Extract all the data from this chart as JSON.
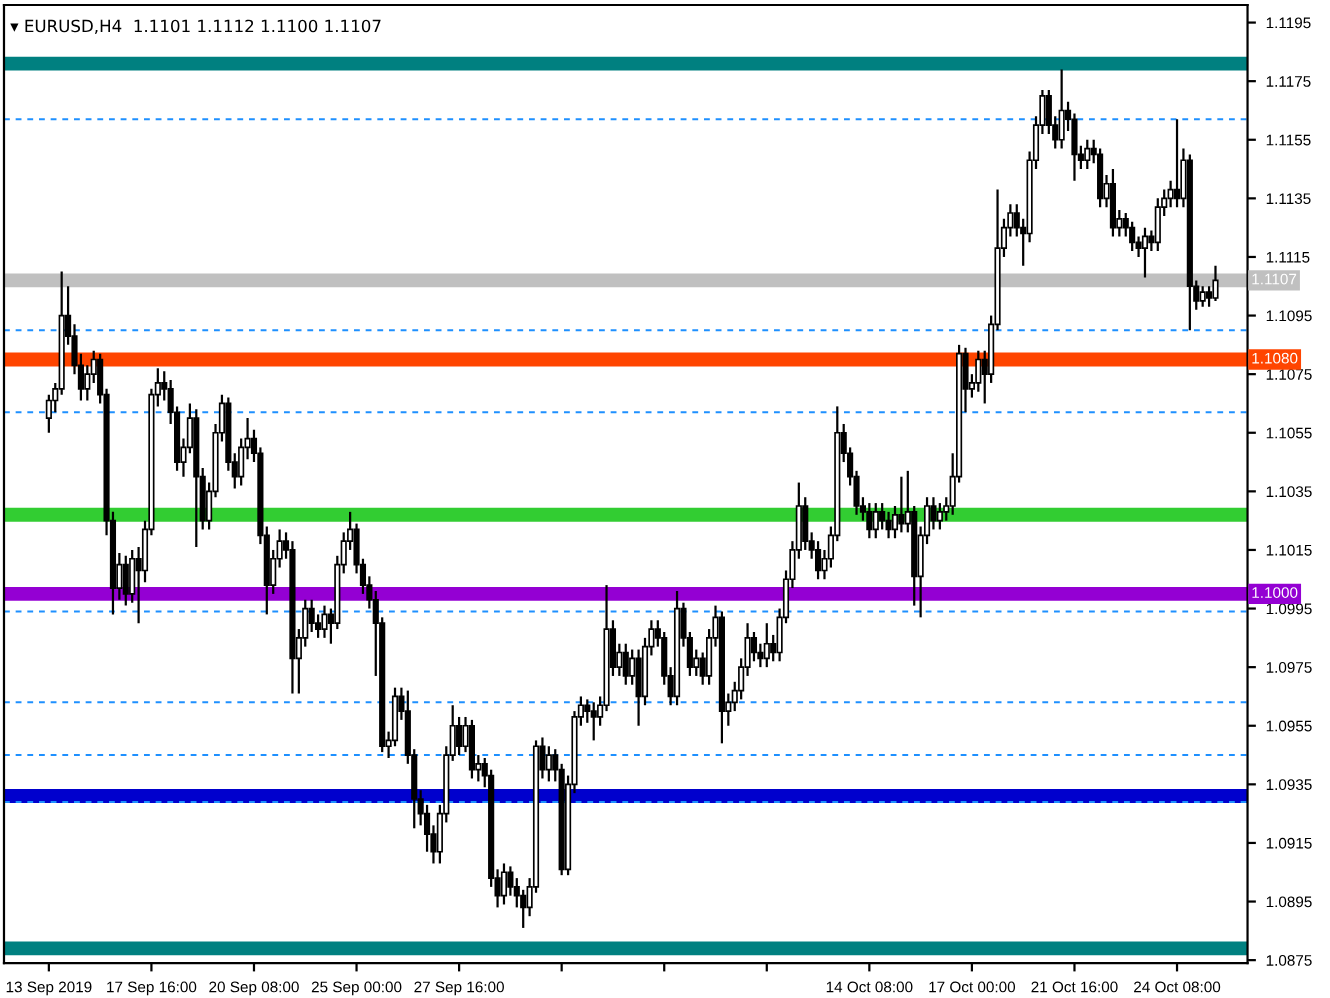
{
  "chart_data": {
    "type": "candlestick",
    "title": "▾ EURUSD,H4  1.1101 1.1112 1.1100 1.1107",
    "color": "#000000",
    "categories": [
      "13 Sep 2019",
      null,
      null,
      null,
      null,
      null,
      null,
      null,
      null,
      null,
      null,
      null,
      null,
      null,
      null,
      null,
      "17 Sep 16:00",
      null,
      null,
      null,
      null,
      null,
      null,
      null,
      null,
      null,
      null,
      null,
      null,
      null,
      null,
      null,
      "20 Sep 08:00",
      null,
      null,
      null,
      null,
      null,
      null,
      null,
      null,
      null,
      null,
      null,
      null,
      null,
      null,
      null,
      "25 Sep 00:00",
      null,
      null,
      null,
      null,
      null,
      null,
      null,
      null,
      null,
      null,
      null,
      null,
      null,
      null,
      null,
      "27 Sep 16:00",
      null,
      null,
      null,
      null,
      null,
      null,
      null,
      null,
      null,
      null,
      null,
      null,
      null,
      null,
      null,
      null,
      null,
      null,
      null,
      null,
      null,
      null,
      null,
      null,
      null,
      null,
      null,
      null,
      null,
      null,
      null,
      null,
      null,
      null,
      null,
      null,
      null,
      null,
      null,
      null,
      null,
      null,
      null,
      null,
      null,
      null,
      null,
      null,
      null,
      null,
      null,
      null,
      null,
      null,
      null,
      null,
      null,
      null,
      null,
      null,
      null,
      null,
      null,
      "14 Oct 08:00",
      null,
      null,
      null,
      null,
      null,
      null,
      null,
      null,
      null,
      null,
      null,
      null,
      null,
      null,
      null,
      "17 Oct 00:00",
      null,
      null,
      null,
      null,
      null,
      null,
      null,
      null,
      null,
      null,
      null,
      null,
      null,
      null,
      null,
      "21 Oct 16:00",
      null,
      null,
      null,
      null,
      null,
      null,
      null,
      null,
      null,
      null,
      null,
      null,
      null,
      null,
      null,
      "24 Oct 08:00",
      null,
      null,
      null,
      null,
      null,
      null
    ],
    "ohlc": [
      [
        1.106,
        1.1068,
        1.1055,
        1.1066
      ],
      [
        1.1066,
        1.1072,
        1.1062,
        1.107
      ],
      [
        1.107,
        1.111,
        1.1068,
        1.1095
      ],
      [
        1.1095,
        1.1105,
        1.1085,
        1.1088
      ],
      [
        1.1088,
        1.1092,
        1.1075,
        1.1078
      ],
      [
        1.1078,
        1.1082,
        1.1066,
        1.107
      ],
      [
        1.107,
        1.1078,
        1.1066,
        1.1075
      ],
      [
        1.1075,
        1.1083,
        1.1072,
        1.108
      ],
      [
        1.108,
        1.1082,
        1.1065,
        1.1068
      ],
      [
        1.1068,
        1.107,
        1.102,
        1.1025
      ],
      [
        1.1025,
        1.1028,
        1.0993,
        1.1002
      ],
      [
        1.1002,
        1.1014,
        1.0998,
        1.101
      ],
      [
        1.101,
        1.1013,
        1.0996,
        1.1
      ],
      [
        1.1,
        1.1015,
        1.0997,
        1.1012
      ],
      [
        1.1012,
        1.1016,
        1.099,
        1.1008
      ],
      [
        1.1008,
        1.1025,
        1.1004,
        1.1022
      ],
      [
        1.1022,
        1.107,
        1.102,
        1.1068
      ],
      [
        1.1068,
        1.1077,
        1.1064,
        1.1072
      ],
      [
        1.1072,
        1.1076,
        1.1066,
        1.107
      ],
      [
        1.107,
        1.1073,
        1.1058,
        1.1062
      ],
      [
        1.1062,
        1.1064,
        1.1042,
        1.1045
      ],
      [
        1.1045,
        1.1053,
        1.104,
        1.105
      ],
      [
        1.105,
        1.1065,
        1.1048,
        1.106
      ],
      [
        1.106,
        1.1063,
        1.1016,
        1.104
      ],
      [
        1.104,
        1.1043,
        1.1022,
        1.1025
      ],
      [
        1.1025,
        1.1038,
        1.1022,
        1.1035
      ],
      [
        1.1035,
        1.1058,
        1.1033,
        1.1055
      ],
      [
        1.1055,
        1.1068,
        1.1052,
        1.1065
      ],
      [
        1.1065,
        1.1067,
        1.1042,
        1.1045
      ],
      [
        1.1045,
        1.1048,
        1.1036,
        1.104
      ],
      [
        1.104,
        1.1053,
        1.1037,
        1.105
      ],
      [
        1.105,
        1.106,
        1.1046,
        1.1053
      ],
      [
        1.1053,
        1.1056,
        1.1045,
        1.1048
      ],
      [
        1.1048,
        1.105,
        1.1017,
        1.102
      ],
      [
        1.102,
        1.1023,
        1.0993,
        1.1003
      ],
      [
        1.1003,
        1.1015,
        1.1,
        1.1012
      ],
      [
        1.1012,
        1.1022,
        1.1009,
        1.1018
      ],
      [
        1.1018,
        1.1021,
        1.1012,
        1.1015
      ],
      [
        1.1015,
        1.1018,
        1.0966,
        1.0978
      ],
      [
        1.0978,
        1.0988,
        1.0966,
        1.0985
      ],
      [
        1.0985,
        1.0998,
        1.0982,
        1.0995
      ],
      [
        1.0995,
        1.0998,
        1.0987,
        1.099
      ],
      [
        1.099,
        1.0993,
        1.0985,
        1.0988
      ],
      [
        1.0988,
        1.0996,
        1.0985,
        1.0993
      ],
      [
        1.0993,
        1.0995,
        1.0983,
        1.099
      ],
      [
        1.099,
        1.1013,
        1.0988,
        1.101
      ],
      [
        1.101,
        1.1021,
        1.1007,
        1.1018
      ],
      [
        1.1018,
        1.1028,
        1.1015,
        1.1022
      ],
      [
        1.1022,
        1.1024,
        1.1007,
        1.101
      ],
      [
        1.101,
        1.1012,
        1.1,
        1.1003
      ],
      [
        1.1003,
        1.1006,
        1.0995,
        1.0998
      ],
      [
        1.0998,
        1.1001,
        1.0972,
        1.099
      ],
      [
        1.099,
        1.0992,
        1.0946,
        1.0948
      ],
      [
        1.0948,
        1.0953,
        1.0944,
        1.095
      ],
      [
        1.095,
        1.0968,
        1.0948,
        1.0965
      ],
      [
        1.0965,
        1.0968,
        1.0957,
        1.096
      ],
      [
        1.096,
        1.0967,
        1.0942,
        1.0945
      ],
      [
        1.0945,
        1.0947,
        1.092,
        1.093
      ],
      [
        1.093,
        1.0933,
        1.0921,
        1.0925
      ],
      [
        1.0925,
        1.0928,
        1.0912,
        1.0918
      ],
      [
        1.0918,
        1.0921,
        1.0908,
        1.0912
      ],
      [
        1.0912,
        1.0928,
        1.0908,
        1.0925
      ],
      [
        1.0925,
        1.0948,
        1.0922,
        1.0945
      ],
      [
        1.0945,
        1.0962,
        1.0943,
        1.0955
      ],
      [
        1.0955,
        1.0958,
        1.0945,
        1.0948
      ],
      [
        1.0948,
        1.0958,
        1.0946,
        1.0955
      ],
      [
        1.0955,
        1.0957,
        1.0937,
        1.094
      ],
      [
        1.094,
        1.0945,
        1.0936,
        1.0942
      ],
      [
        1.0942,
        1.0944,
        1.0934,
        1.0938
      ],
      [
        1.0938,
        1.094,
        1.09,
        1.0903
      ],
      [
        1.0903,
        1.0906,
        1.0893,
        1.0897
      ],
      [
        1.0897,
        1.0908,
        1.0894,
        1.0905
      ],
      [
        1.0905,
        1.0907,
        1.0897,
        1.09
      ],
      [
        1.09,
        1.0903,
        1.0893,
        1.0897
      ],
      [
        1.0897,
        1.0899,
        1.0886,
        1.0893
      ],
      [
        1.0893,
        1.0903,
        1.089,
        1.09
      ],
      [
        1.09,
        1.095,
        1.0898,
        1.0948
      ],
      [
        1.0948,
        1.0951,
        1.0937,
        1.094
      ],
      [
        1.094,
        1.0948,
        1.0936,
        1.0945
      ],
      [
        1.0945,
        1.0947,
        1.0936,
        1.094
      ],
      [
        1.094,
        1.0942,
        1.0904,
        1.0906
      ],
      [
        1.0906,
        1.0938,
        1.0904,
        1.0935
      ],
      [
        1.0935,
        1.096,
        1.0932,
        1.0958
      ],
      [
        1.0958,
        1.0965,
        1.0955,
        1.0962
      ],
      [
        1.0962,
        1.0964,
        1.0956,
        1.096
      ],
      [
        1.096,
        1.0963,
        1.095,
        1.0958
      ],
      [
        1.0958,
        1.0965,
        1.0955,
        1.0962
      ],
      [
        1.0962,
        1.1003,
        1.096,
        1.0988
      ],
      [
        1.0988,
        1.0991,
        1.0972,
        1.0975
      ],
      [
        1.0975,
        1.0983,
        1.0972,
        1.098
      ],
      [
        1.098,
        1.0983,
        1.0969,
        1.0972
      ],
      [
        1.0972,
        1.0981,
        1.0969,
        1.0978
      ],
      [
        1.0978,
        1.0981,
        1.0955,
        1.0965
      ],
      [
        1.0965,
        1.0985,
        1.0962,
        1.0982
      ],
      [
        1.0982,
        1.0991,
        1.0979,
        1.0988
      ],
      [
        1.0988,
        1.0991,
        1.0982,
        1.0985
      ],
      [
        1.0985,
        1.0987,
        1.0969,
        1.0972
      ],
      [
        1.0972,
        1.0975,
        1.0962,
        1.0965
      ],
      [
        1.0965,
        1.1001,
        1.0962,
        1.0995
      ],
      [
        1.0995,
        1.0997,
        1.0982,
        1.0985
      ],
      [
        1.0985,
        1.0987,
        1.0972,
        1.0975
      ],
      [
        1.0975,
        1.0981,
        1.0972,
        1.0978
      ],
      [
        1.0978,
        1.098,
        1.0969,
        1.0972
      ],
      [
        1.0972,
        1.0988,
        1.0969,
        1.0985
      ],
      [
        1.0985,
        1.0996,
        1.0982,
        1.0992
      ],
      [
        1.0992,
        1.0994,
        1.0949,
        1.096
      ],
      [
        1.096,
        1.0966,
        1.0955,
        1.0963
      ],
      [
        1.0963,
        1.097,
        1.096,
        1.0967
      ],
      [
        1.0967,
        1.0978,
        1.0964,
        1.0975
      ],
      [
        1.0975,
        1.099,
        1.0972,
        1.0985
      ],
      [
        1.0985,
        1.0987,
        1.0977,
        1.098
      ],
      [
        1.098,
        1.0983,
        1.0975,
        1.0978
      ],
      [
        1.0978,
        1.099,
        1.0975,
        1.0983
      ],
      [
        1.0983,
        1.0986,
        1.0977,
        1.098
      ],
      [
        1.098,
        1.0995,
        1.0977,
        1.0992
      ],
      [
        1.0992,
        1.1008,
        1.099,
        1.1005
      ],
      [
        1.1005,
        1.1018,
        1.1002,
        1.1015
      ],
      [
        1.1015,
        1.1038,
        1.1012,
        1.103
      ],
      [
        1.103,
        1.1033,
        1.1015,
        1.1018
      ],
      [
        1.1018,
        1.1021,
        1.1012,
        1.1015
      ],
      [
        1.1015,
        1.1018,
        1.1005,
        1.1008
      ],
      [
        1.1008,
        1.1015,
        1.1005,
        1.1012
      ],
      [
        1.1012,
        1.1023,
        1.1009,
        1.102
      ],
      [
        1.102,
        1.1064,
        1.1018,
        1.1055
      ],
      [
        1.1055,
        1.1058,
        1.1045,
        1.1048
      ],
      [
        1.1048,
        1.105,
        1.1037,
        1.104
      ],
      [
        1.104,
        1.1042,
        1.1027,
        1.103
      ],
      [
        1.103,
        1.1033,
        1.1025,
        1.1028
      ],
      [
        1.1028,
        1.1031,
        1.1019,
        1.1022
      ],
      [
        1.1022,
        1.1031,
        1.1019,
        1.1028
      ],
      [
        1.1028,
        1.1031,
        1.1022,
        1.1025
      ],
      [
        1.1025,
        1.1028,
        1.1019,
        1.1022
      ],
      [
        1.1022,
        1.103,
        1.1019,
        1.1027
      ],
      [
        1.1027,
        1.104,
        1.1021,
        1.1024
      ],
      [
        1.1024,
        1.1042,
        1.1021,
        1.1028
      ],
      [
        1.1028,
        1.103,
        1.0996,
        1.1006
      ],
      [
        1.1006,
        1.1023,
        1.0992,
        1.102
      ],
      [
        1.102,
        1.1033,
        1.1017,
        1.103
      ],
      [
        1.103,
        1.1033,
        1.1022,
        1.1025
      ],
      [
        1.1025,
        1.1031,
        1.1022,
        1.1028
      ],
      [
        1.1028,
        1.1033,
        1.1025,
        1.103
      ],
      [
        1.103,
        1.1048,
        1.1027,
        1.104
      ],
      [
        1.104,
        1.1085,
        1.1038,
        1.1082
      ],
      [
        1.1082,
        1.1084,
        1.1062,
        1.107
      ],
      [
        1.107,
        1.1075,
        1.1067,
        1.1072
      ],
      [
        1.1072,
        1.1083,
        1.1069,
        1.108
      ],
      [
        1.108,
        1.1083,
        1.1065,
        1.1075
      ],
      [
        1.1075,
        1.1095,
        1.1072,
        1.1092
      ],
      [
        1.1092,
        1.1138,
        1.109,
        1.1118
      ],
      [
        1.1118,
        1.1128,
        1.1115,
        1.1125
      ],
      [
        1.1125,
        1.1133,
        1.1122,
        1.113
      ],
      [
        1.113,
        1.1133,
        1.1122,
        1.1125
      ],
      [
        1.1125,
        1.1128,
        1.1112,
        1.1123
      ],
      [
        1.1123,
        1.1151,
        1.112,
        1.1148
      ],
      [
        1.1148,
        1.1163,
        1.1145,
        1.116
      ],
      [
        1.116,
        1.1172,
        1.1157,
        1.117
      ],
      [
        1.117,
        1.1172,
        1.1157,
        1.116
      ],
      [
        1.116,
        1.1163,
        1.1152,
        1.1155
      ],
      [
        1.1155,
        1.1179,
        1.1152,
        1.1165
      ],
      [
        1.1165,
        1.1168,
        1.1158,
        1.1162
      ],
      [
        1.1162,
        1.1164,
        1.1141,
        1.115
      ],
      [
        1.115,
        1.1153,
        1.1145,
        1.1148
      ],
      [
        1.1148,
        1.1155,
        1.1145,
        1.1152
      ],
      [
        1.1152,
        1.1155,
        1.1147,
        1.115
      ],
      [
        1.115,
        1.1152,
        1.1132,
        1.1135
      ],
      [
        1.1135,
        1.1143,
        1.1132,
        1.114
      ],
      [
        1.114,
        1.1145,
        1.1122,
        1.1125
      ],
      [
        1.1125,
        1.1131,
        1.1122,
        1.1128
      ],
      [
        1.1128,
        1.113,
        1.1122,
        1.1125
      ],
      [
        1.1125,
        1.1127,
        1.1117,
        1.112
      ],
      [
        1.112,
        1.1122,
        1.1115,
        1.1118
      ],
      [
        1.1118,
        1.1125,
        1.1108,
        1.1122
      ],
      [
        1.1122,
        1.1124,
        1.1117,
        1.112
      ],
      [
        1.112,
        1.1135,
        1.1117,
        1.1132
      ],
      [
        1.1132,
        1.1138,
        1.1129,
        1.1135
      ],
      [
        1.1135,
        1.1141,
        1.1132,
        1.1138
      ],
      [
        1.1138,
        1.1162,
        1.1132,
        1.1135
      ],
      [
        1.1135,
        1.1152,
        1.1132,
        1.1148
      ],
      [
        1.1148,
        1.115,
        1.109,
        1.1105
      ],
      [
        1.1105,
        1.1107,
        1.1097,
        1.11
      ],
      [
        1.11,
        1.1105,
        1.1098,
        1.1103
      ],
      [
        1.1103,
        1.1105,
        1.1098,
        1.1101
      ],
      [
        1.1101,
        1.1112,
        1.11,
        1.1107
      ]
    ],
    "ylim": [
      1.0874,
      1.1201
    ],
    "yticks": [
      1.0875,
      1.0895,
      1.0915,
      1.0935,
      1.0955,
      1.0975,
      1.0995,
      1.1015,
      1.1035,
      1.1055,
      1.1075,
      1.1095,
      1.1115,
      1.1135,
      1.1155,
      1.1175,
      1.1195
    ],
    "ref_lines": [
      {
        "axis": "y",
        "value": 1.1181,
        "color": "#008080",
        "line_style": "solid"
      },
      {
        "axis": "y",
        "value": 1.0879,
        "color": "#008080",
        "line_style": "solid"
      },
      {
        "axis": "y",
        "value": 1.1107,
        "color": "#c0c0c0",
        "line_style": "solid",
        "label": "1.1107"
      },
      {
        "axis": "y",
        "value": 1.108,
        "color": "#ff4500",
        "line_style": "solid",
        "label": "1.1080"
      },
      {
        "axis": "y",
        "value": 1.1027,
        "color": "#32cd32",
        "line_style": "solid"
      },
      {
        "axis": "y",
        "value": 1.1,
        "color": "#9400d3",
        "line_style": "solid",
        "label": "1.1000"
      },
      {
        "axis": "y",
        "value": 1.0931,
        "color": "#0000cd",
        "line_style": "solid"
      },
      {
        "axis": "y",
        "value": 1.1162,
        "color": "#1e90ff",
        "line_style": "dashed"
      },
      {
        "axis": "y",
        "value": 1.109,
        "color": "#1e90ff",
        "line_style": "dashed"
      },
      {
        "axis": "y",
        "value": 1.1062,
        "color": "#1e90ff",
        "line_style": "dashed"
      },
      {
        "axis": "y",
        "value": 1.0994,
        "color": "#1e90ff",
        "line_style": "dashed"
      },
      {
        "axis": "y",
        "value": 1.0963,
        "color": "#1e90ff",
        "line_style": "dashed"
      },
      {
        "axis": "y",
        "value": 1.0945,
        "color": "#1e90ff",
        "line_style": "dashed"
      },
      {
        "axis": "y",
        "value": 1.0929,
        "color": "#1e90ff",
        "line_style": "dashed"
      }
    ],
    "grid": false,
    "legend": false
  }
}
